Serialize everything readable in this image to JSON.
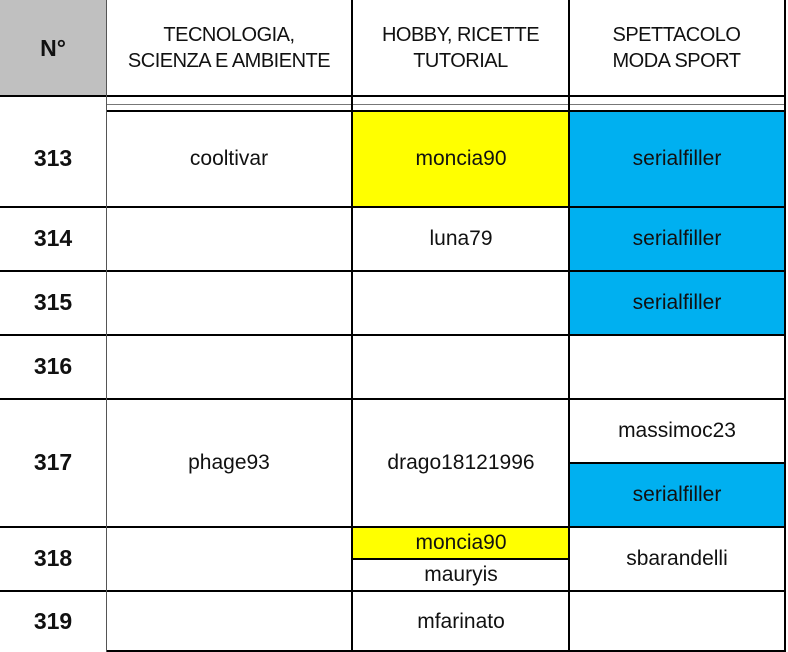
{
  "header": {
    "num": "N°",
    "col1": "TECNOLOGIA,\nSCIENZA E AMBIENTE",
    "col2": "HOBBY, RICETTE\nTUTORIAL",
    "col3": "SPETTACOLO\nMODA SPORT"
  },
  "rows": [
    {
      "num": "313",
      "col1": "cooltivar",
      "col2": "moncia90",
      "col3": "serialfiller"
    },
    {
      "num": "314",
      "col1": "",
      "col2": "luna79",
      "col3": "serialfiller"
    },
    {
      "num": "315",
      "col1": "",
      "col2": "",
      "col3": "serialfiller"
    },
    {
      "num": "316",
      "col1": "",
      "col2": "",
      "col3": ""
    },
    {
      "num": "317",
      "col1": "phage93",
      "col2": "drago18121996",
      "col3": "massimoc23",
      "col3b": "serialfiller"
    },
    {
      "num": "318",
      "col1": "",
      "col2": "moncia90",
      "col2b": "mauryis",
      "col3": "sbarandelli"
    },
    {
      "num": "319",
      "col1": "",
      "col2": "mfarinato",
      "col3": ""
    }
  ],
  "colors": {
    "yellow": "#ffff00",
    "blue": "#00b0f0",
    "header_gray": "#c0c0c0"
  }
}
